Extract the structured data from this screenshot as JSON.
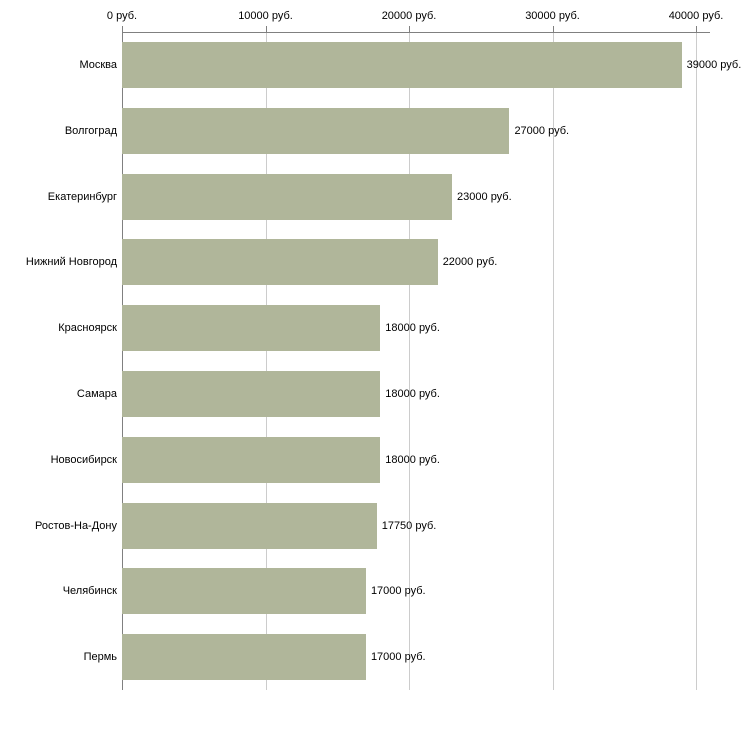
{
  "chart_data": {
    "type": "bar",
    "orientation": "horizontal",
    "title": "",
    "xlabel": "",
    "ylabel": "",
    "xlim": [
      0,
      40000
    ],
    "grid": true,
    "legend": false,
    "bar_color": "#b0b69a",
    "axis_color": "#808080",
    "grid_color": "#cccccc",
    "x_ticks": [
      0,
      10000,
      20000,
      30000,
      40000
    ],
    "x_tick_labels": [
      "0 руб.",
      "10000 руб.",
      "20000 руб.",
      "30000 руб.",
      "40000 руб."
    ],
    "categories": [
      "Москва",
      "Волгоград",
      "Екатеринбург",
      "Нижний Новгород",
      "Красноярск",
      "Самара",
      "Новосибирск",
      "Ростов-На-Дону",
      "Челябинск",
      "Пермь"
    ],
    "values": [
      39000,
      27000,
      23000,
      22000,
      18000,
      18000,
      18000,
      17750,
      17000,
      17000
    ],
    "value_labels": [
      "39000 руб.",
      "27000 руб.",
      "23000 руб.",
      "22000 руб.",
      "18000 руб.",
      "18000 руб.",
      "18000 руб.",
      "17750 руб.",
      "17000 руб.",
      "17000 руб."
    ]
  }
}
